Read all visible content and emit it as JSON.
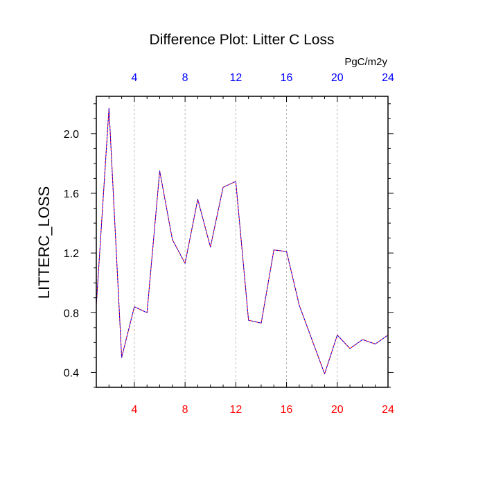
{
  "chart_data": {
    "type": "line",
    "title": "Difference Plot: Litter C Loss",
    "ylabel": "LITTERC_LOSS",
    "units_label": "PgC/m2y",
    "xlim": [
      1,
      24
    ],
    "ylim": [
      0.3,
      2.25
    ],
    "x_ticks": [
      4,
      8,
      12,
      16,
      20,
      24
    ],
    "y_ticks": [
      0.4,
      0.8,
      1.2,
      1.6,
      2.0
    ],
    "y_tick_labels": [
      "0.4",
      "0.8",
      "1.2",
      "1.6",
      "2.0"
    ],
    "bottom_tick_color": "#ff0000",
    "top_tick_color": "#0000ff",
    "vertical_grid": true,
    "series": [
      {
        "color": "#ff0000",
        "x": [
          1,
          2,
          3,
          4,
          5,
          6,
          7,
          8,
          9,
          10,
          11,
          12,
          13,
          14,
          15,
          16,
          17,
          18,
          19,
          20,
          21,
          22,
          23,
          24
        ],
        "values": [
          0.85,
          2.17,
          0.5,
          0.84,
          0.8,
          1.75,
          1.29,
          1.13,
          1.56,
          1.24,
          1.64,
          1.68,
          0.75,
          0.73,
          1.22,
          1.21,
          0.85,
          0.62,
          0.39,
          0.65,
          0.56,
          0.62,
          0.59,
          0.65
        ]
      },
      {
        "color": "#0000ff",
        "x": [
          1,
          2,
          3,
          4,
          5,
          6,
          7,
          8,
          9,
          10,
          11,
          12,
          13,
          14,
          15,
          16,
          17,
          18,
          19,
          20,
          21,
          22,
          23,
          24
        ],
        "values": [
          0.85,
          2.17,
          0.5,
          0.84,
          0.8,
          1.75,
          1.29,
          1.13,
          1.56,
          1.24,
          1.64,
          1.68,
          0.75,
          0.73,
          1.22,
          1.21,
          0.85,
          0.62,
          0.39,
          0.65,
          0.56,
          0.62,
          0.59,
          0.65
        ]
      }
    ]
  }
}
